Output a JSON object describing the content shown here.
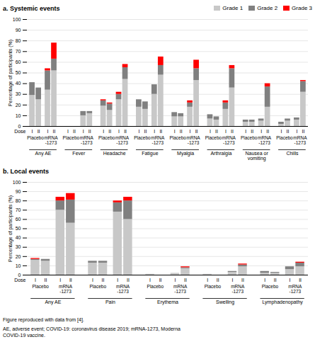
{
  "chart_data": [
    {
      "type": "bar",
      "stacked": true,
      "title": "a. Systemic events",
      "ylabel": "Percentage of participants (%)",
      "xlabel": "Dose",
      "groups": [
        "Any AE",
        "Fever",
        "Headache",
        "Fatigue",
        "Myalgia",
        "Arthralgia",
        "Nausea or\nvomiting",
        "Chills"
      ],
      "bar_labels": [
        "Placebo",
        "Placebo",
        "mRNA\n-1273",
        "mRNA\n-1273",
        "Placebo",
        "Placebo",
        "mRNA\n-1273",
        "mRNA\n-1273",
        "Placebo",
        "Placebo",
        "mRNA\n-1273",
        "mRNA\n-1273",
        "Placebo",
        "Placebo",
        "mRNA\n-1273",
        "mRNA\n-1273",
        "Placebo",
        "Placebo",
        "mRNA\n-1273",
        "mRNA\n-1273",
        "Placebo",
        "Placebo",
        "mRNA\n-1273",
        "mRNA\n-1273",
        "Placebo",
        "Placebo",
        "mRNA\n-1273",
        "mRNA\n-1273",
        "Placebo",
        "Placebo",
        "mRNA\n-1273",
        "mRNA\n-1273"
      ],
      "categories": [
        "I",
        "II",
        "I",
        "II",
        "I",
        "II",
        "I",
        "II",
        "I",
        "II",
        "I",
        "II",
        "I",
        "II",
        "I",
        "II",
        "I",
        "II",
        "I",
        "II",
        "I",
        "II",
        "I",
        "II",
        "I",
        "II",
        "I",
        "II",
        "I",
        "II",
        "I",
        "II"
      ],
      "series": [
        {
          "name": "Grade 1",
          "color": "#c8c8c8",
          "values": [
            29,
            25,
            34,
            52,
            0,
            0,
            10,
            12,
            19,
            15,
            25,
            44,
            18,
            16,
            30,
            48,
            9,
            9,
            18,
            43,
            7,
            6,
            16,
            36,
            4,
            4,
            5,
            18,
            2,
            5,
            6,
            32
          ]
        },
        {
          "name": "Grade 2",
          "color": "#808080",
          "values": [
            12,
            11,
            18,
            11,
            0,
            0,
            4,
            2,
            5,
            6,
            5,
            11,
            7,
            7,
            9,
            9,
            4,
            3,
            4,
            11,
            4,
            3,
            6,
            18,
            2,
            2,
            2,
            19,
            2,
            2,
            2,
            10
          ]
        },
        {
          "name": "Grade 3",
          "color": "#ff0000",
          "values": [
            0,
            0,
            2,
            15,
            0,
            0,
            0,
            0,
            1,
            1,
            2,
            3,
            0,
            0,
            0,
            8,
            0,
            0,
            2,
            8,
            0,
            0,
            2,
            3,
            0,
            0,
            0,
            3,
            0,
            0,
            0,
            1
          ]
        }
      ],
      "ylim": [
        0,
        100
      ],
      "yticks": [
        0,
        10,
        20,
        30,
        40,
        50,
        60,
        70,
        80,
        90,
        100
      ],
      "grid": true,
      "legend": "top-right"
    },
    {
      "type": "bar",
      "stacked": true,
      "title": "b. Local events",
      "ylabel": "Percentage of participants (%)",
      "xlabel": "Dose",
      "groups": [
        "Any AE",
        "Pain",
        "Erythema",
        "Swelling",
        "Lymphadenopathy"
      ],
      "bar_labels": [
        "Placebo",
        "Placebo",
        "mRNA\n-1273",
        "mRNA\n-1273",
        "Placebo",
        "Placebo",
        "mRNA\n-1273",
        "mRNA\n-1273",
        "Placebo",
        "Placebo",
        "mRNA\n-1273",
        "mRNA\n-1273",
        "Placebo",
        "Placebo",
        "mRNA\n-1273",
        "mRNA\n-1273",
        "Placebo",
        "Placebo",
        "mRNA\n-1273",
        "mRNA\n-1273"
      ],
      "categories": [
        "I",
        "II",
        "I",
        "II",
        "I",
        "II",
        "I",
        "II",
        "I",
        "II",
        "I",
        "II",
        "I",
        "II",
        "I",
        "II",
        "I",
        "II",
        "I",
        "II"
      ],
      "series": [
        {
          "name": "Grade 1",
          "color": "#c8c8c8",
          "values": [
            16,
            15,
            70,
            56,
            13,
            13,
            68,
            60,
            1,
            0,
            2,
            7,
            1,
            0,
            3,
            9,
            2,
            2,
            6,
            9
          ]
        },
        {
          "name": "Grade 2",
          "color": "#808080",
          "values": [
            1,
            2,
            10,
            25,
            2,
            2,
            10,
            20,
            0,
            0,
            0,
            1,
            0,
            0,
            1,
            2,
            2,
            1,
            3,
            4
          ]
        },
        {
          "name": "Grade 3",
          "color": "#ff0000",
          "values": [
            1,
            0,
            4,
            7,
            0,
            0,
            2,
            4,
            0,
            0,
            0,
            1,
            0,
            0,
            0,
            1,
            0,
            0,
            0,
            1
          ]
        }
      ],
      "ylim": [
        0,
        100
      ],
      "yticks": [
        0,
        10,
        20,
        30,
        40,
        50,
        60,
        70,
        80,
        90,
        100
      ],
      "grid": true,
      "annotations": [
        "Figure reproduced with data from [4].",
        "AE, adverse event; COVID-19: coronavirus disease 2019; mRNA-1273, Moderna\nCOVID-19 vaccine."
      ]
    }
  ]
}
